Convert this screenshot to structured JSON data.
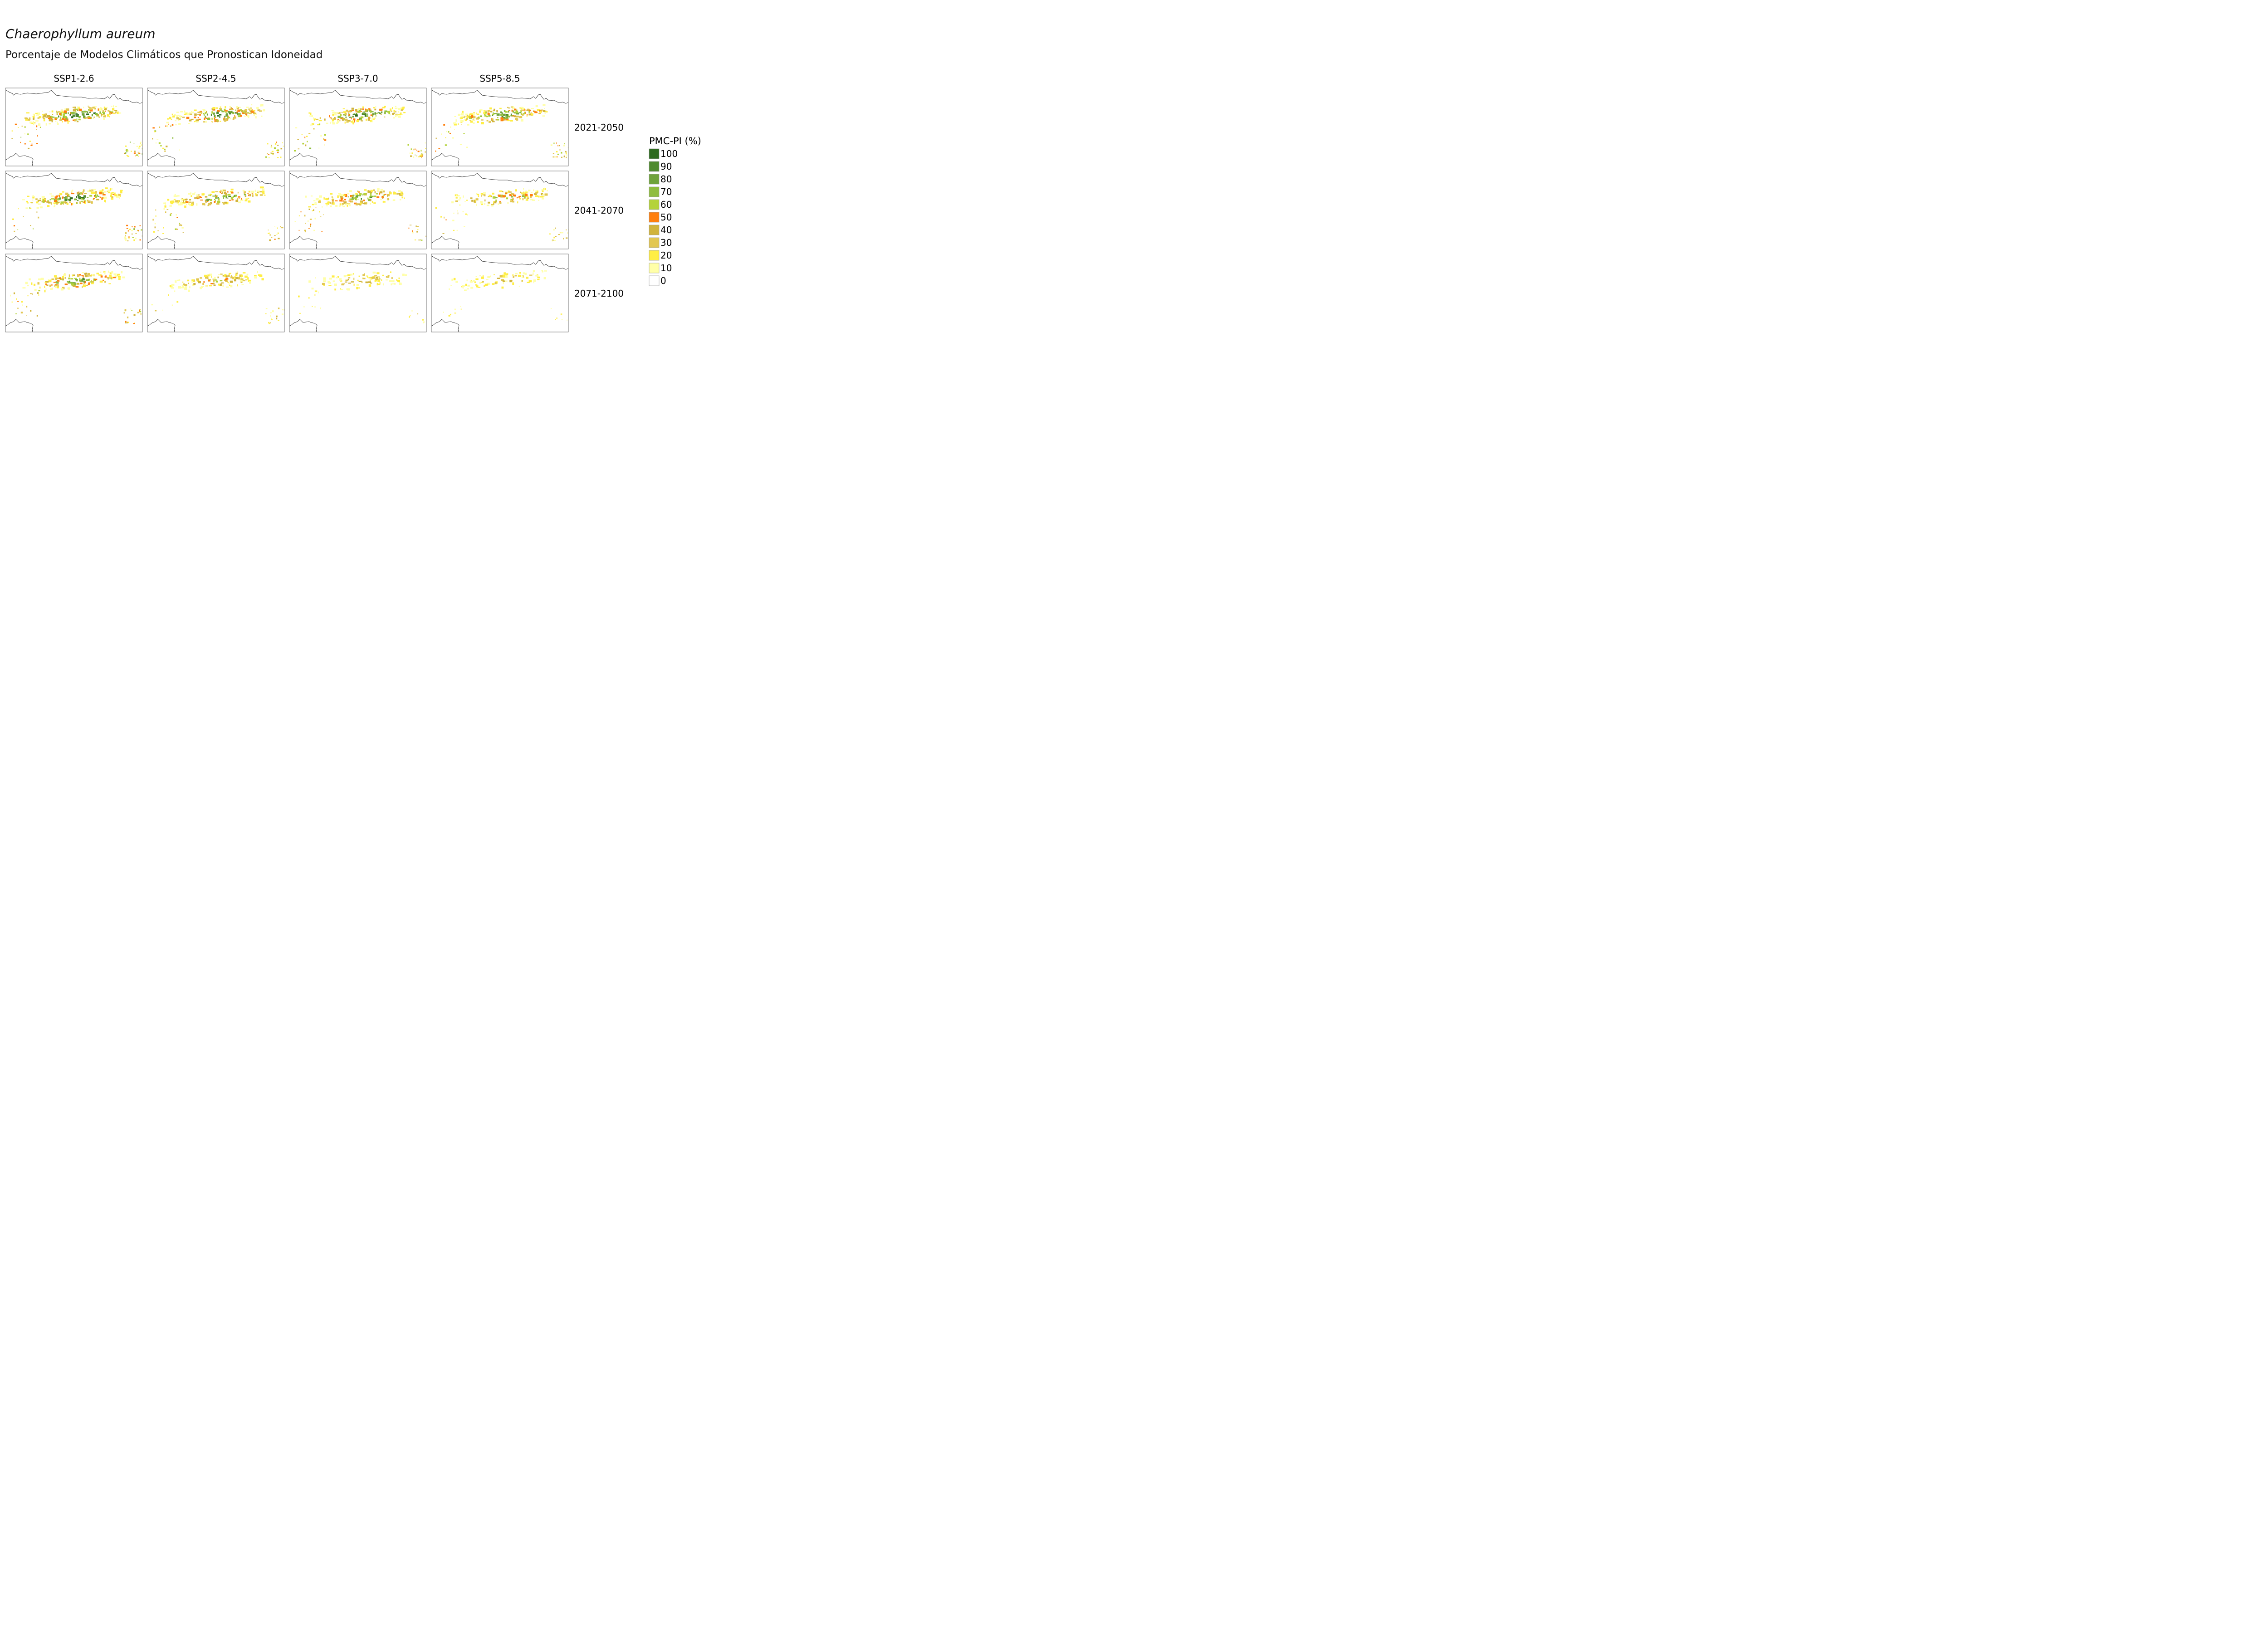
{
  "chart_data": {
    "type": "heatmap",
    "title": "Chaerophyllum aureum",
    "subtitle": "Porcentaje de Modelos Climáticos que Pronostican Idoneidad",
    "columns": [
      "SSP1-2.6",
      "SSP2-4.5",
      "SSP3-7.0",
      "SSP5-8.5"
    ],
    "rows": [
      "2021-2050",
      "2041-2070",
      "2071-2100"
    ],
    "legend": {
      "title": "PMC-PI (%)",
      "placement": "right",
      "levels": [
        100,
        90,
        80,
        70,
        60,
        50,
        40,
        30,
        20,
        10,
        0
      ],
      "colors": [
        "#2d6a1e",
        "#4f8a2e",
        "#6fa33b",
        "#8fbd3e",
        "#b4d33a",
        "#ff7f0e",
        "#d1b43c",
        "#e2c752",
        "#ffee44",
        "#ffffa8",
        "#ffffff"
      ]
    },
    "panels": [
      [
        {
          "suitability": 0.95
        },
        {
          "suitability": 0.9
        },
        {
          "suitability": 0.88
        },
        {
          "suitability": 0.86
        }
      ],
      [
        {
          "suitability": 0.9
        },
        {
          "suitability": 0.78
        },
        {
          "suitability": 0.74
        },
        {
          "suitability": 0.62
        }
      ],
      [
        {
          "suitability": 0.78
        },
        {
          "suitability": 0.48
        },
        {
          "suitability": 0.32
        },
        {
          "suitability": 0.26
        }
      ]
    ]
  }
}
